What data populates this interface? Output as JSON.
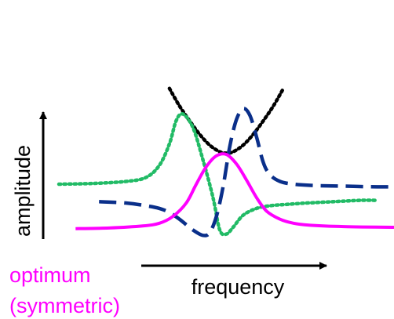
{
  "chart_data": {
    "type": "line",
    "title": "",
    "xlabel": "frequency",
    "ylabel": "amplitude",
    "ticks": "none",
    "grid": false,
    "legend": "none",
    "xlim": [
      0,
      100
    ],
    "ylim": [
      0,
      100
    ],
    "annotation": {
      "lines": [
        "optimum",
        "(symmetric)"
      ],
      "color": "#ff00ff"
    },
    "series": [
      {
        "style": "dotted",
        "color": "#000000",
        "x": [
          33,
          36,
          39,
          42,
          45,
          48,
          50,
          52,
          55,
          58,
          61,
          64,
          67
        ],
        "y": [
          103,
          90,
          79,
          69,
          61,
          56,
          55,
          56,
          61,
          69,
          79,
          90,
          103
        ]
      },
      {
        "style": "dotted",
        "color": "#22bb66",
        "x": [
          0,
          10,
          20,
          26,
          30,
          33,
          35,
          37,
          40,
          43,
          46,
          48,
          50,
          52,
          55,
          59,
          63,
          68,
          74,
          82,
          90,
          95
        ],
        "y": [
          32,
          32.5,
          34,
          37,
          46,
          62,
          79,
          84,
          74,
          50,
          22,
          -2,
          -5,
          0,
          9,
          14,
          16,
          17,
          18,
          19,
          20,
          20
        ]
      },
      {
        "style": "dashed",
        "color": "#0a2f8a",
        "x": [
          12,
          20,
          26,
          30,
          33,
          36,
          40,
          43,
          45,
          47,
          49,
          51,
          53,
          55,
          57,
          59,
          61,
          63,
          66,
          70,
          76,
          85,
          95,
          100
        ],
        "y": [
          19,
          18,
          16,
          14,
          11,
          6,
          -2,
          -6,
          -4,
          8,
          30,
          60,
          80,
          88,
          83,
          67,
          48,
          39,
          34,
          32,
          31,
          30.5,
          30,
          30
        ]
      },
      {
        "style": "solid",
        "color": "#ff00ff",
        "x": [
          5,
          15,
          25,
          30,
          34,
          38,
          41,
          44,
          47,
          50,
          53,
          56,
          59,
          62,
          66,
          70,
          75,
          85,
          100
        ],
        "y": [
          -1,
          -0.5,
          1,
          3,
          8,
          18,
          32,
          45,
          53,
          54,
          47,
          35,
          22,
          12,
          6,
          3,
          1.5,
          0.5,
          0
        ]
      }
    ]
  }
}
